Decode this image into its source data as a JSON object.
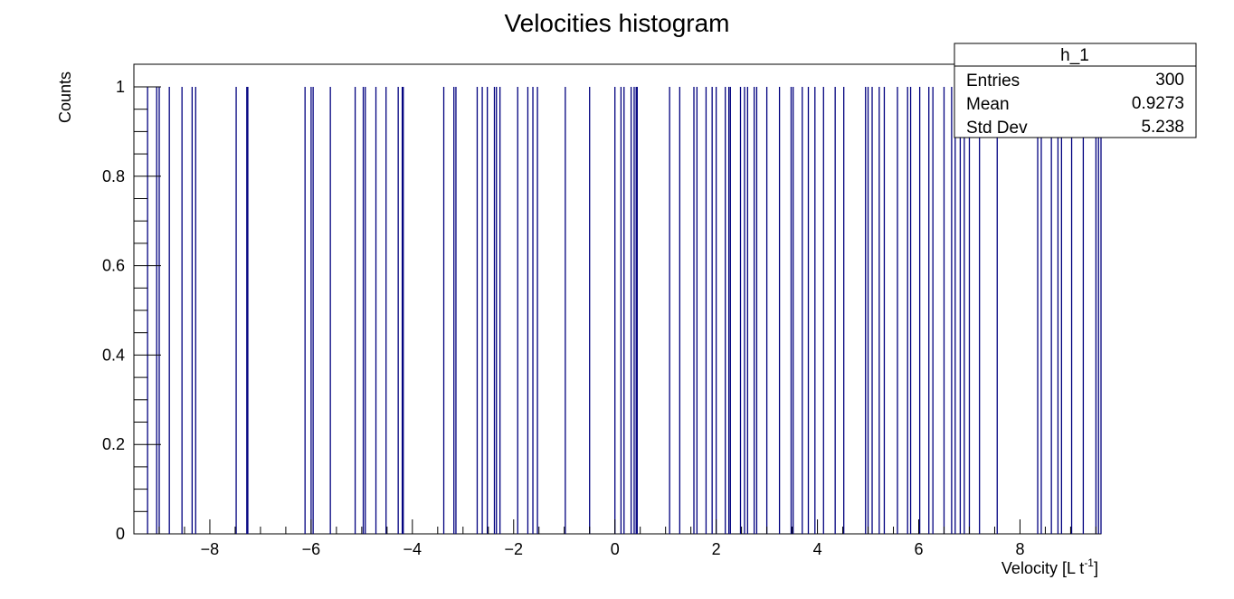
{
  "chart_data": {
    "type": "bar",
    "title": "Velocities histogram",
    "xlabel": "Velocity [L t",
    "xlabel_superscript": "-1",
    "xlabel_suffix": "]",
    "ylabel": "Counts",
    "xlim": [
      -9.5,
      9.6
    ],
    "ylim": [
      0,
      1.05
    ],
    "x_ticks": [
      -8,
      -6,
      -4,
      -2,
      0,
      2,
      4,
      6,
      8
    ],
    "x_tick_labels": [
      "−8",
      "−6",
      "−4",
      "−2",
      "0",
      "2",
      "4",
      "6",
      "8"
    ],
    "y_ticks": [
      0,
      0.2,
      0.4,
      0.6,
      0.8,
      1
    ],
    "y_tick_labels": [
      "0",
      "0.2",
      "0.4",
      "0.6",
      "0.8",
      "1"
    ],
    "bar_color": "#00007f",
    "bins_with_count_1": [
      -9.23,
      -9.05,
      -9.0,
      -8.8,
      -8.55,
      -8.35,
      -8.28,
      -7.48,
      -7.27,
      -7.25,
      -6.12,
      -6.0,
      -5.96,
      -5.62,
      -5.13,
      -4.97,
      -4.93,
      -4.72,
      -4.52,
      -4.28,
      -4.2,
      -4.18,
      -3.38,
      -3.18,
      -3.14,
      -2.72,
      -2.62,
      -2.52,
      -2.38,
      -2.34,
      -2.27,
      -1.92,
      -1.72,
      -1.62,
      -1.53,
      -0.98,
      -0.5,
      0.0,
      0.12,
      0.18,
      0.32,
      0.38,
      0.42,
      0.44,
      1.08,
      1.28,
      1.56,
      1.62,
      1.8,
      1.92,
      2.0,
      2.18,
      2.25,
      2.28,
      2.48,
      2.56,
      2.62,
      2.75,
      2.8,
      3.0,
      3.25,
      3.48,
      3.52,
      3.7,
      3.82,
      3.95,
      4.12,
      4.35,
      4.52,
      4.95,
      5.0,
      5.08,
      5.22,
      5.32,
      5.58,
      5.78,
      5.84,
      6.02,
      6.2,
      6.28,
      6.5,
      6.65,
      6.72,
      6.82,
      6.9,
      7.0,
      7.2,
      7.55,
      8.35,
      8.42,
      8.62,
      8.75,
      8.82,
      9.02,
      9.25,
      9.5,
      9.55,
      9.6
    ],
    "stats_box": {
      "name": "h_1",
      "rows": [
        {
          "label": "Entries",
          "value": "300"
        },
        {
          "label": "Mean",
          "value": "0.9273"
        },
        {
          "label": "Std Dev",
          "value": "5.238"
        }
      ]
    }
  }
}
